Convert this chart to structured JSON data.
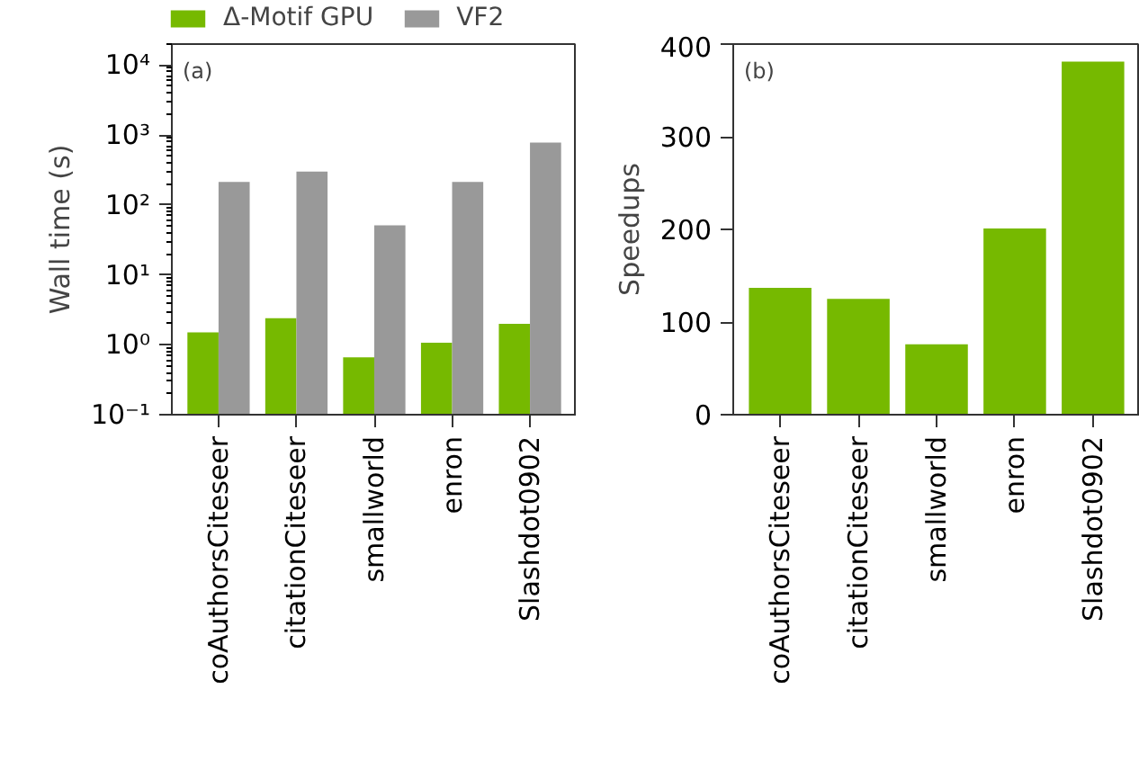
{
  "chart_data": [
    {
      "type": "bar",
      "ylabel": "Wall time (s)",
      "categories": [
        "coAuthorsCiteseer",
        "citationCiteseer",
        "smallworld",
        "enron",
        "Slashdot0902"
      ],
      "series": [
        {
          "name": "Δ-Motif GPU",
          "color": "#76b900",
          "values": [
            1.5,
            2.4,
            0.66,
            1.07,
            2.0
          ]
        },
        {
          "name": "VF2",
          "color": "#999999",
          "values": [
            213,
            300,
            51,
            213,
            780
          ]
        }
      ],
      "log": "y",
      "ylim": [
        0.1,
        20000
      ],
      "yticks": [
        {
          "value": 0.1,
          "label": "10⁻¹"
        },
        {
          "value": 1,
          "label": "10⁰"
        },
        {
          "value": 10,
          "label": "10¹"
        },
        {
          "value": 100,
          "label": "10²"
        },
        {
          "value": 1000,
          "label": "10³"
        },
        {
          "value": 10000,
          "label": "10⁴"
        }
      ],
      "legend": "top",
      "annotations": [
        "(a)"
      ]
    },
    {
      "type": "bar",
      "ylabel": "Speedups",
      "categories": [
        "coAuthorsCiteseer",
        "citationCiteseer",
        "smallworld",
        "enron",
        "Slashdot0902"
      ],
      "series": [
        {
          "color": "#76b900",
          "values": [
            137,
            125,
            76,
            201,
            381
          ]
        }
      ],
      "ylim": [
        0,
        400
      ],
      "yticks": [
        0,
        100,
        200,
        300,
        400
      ],
      "annotations": [
        "(b)"
      ]
    }
  ]
}
